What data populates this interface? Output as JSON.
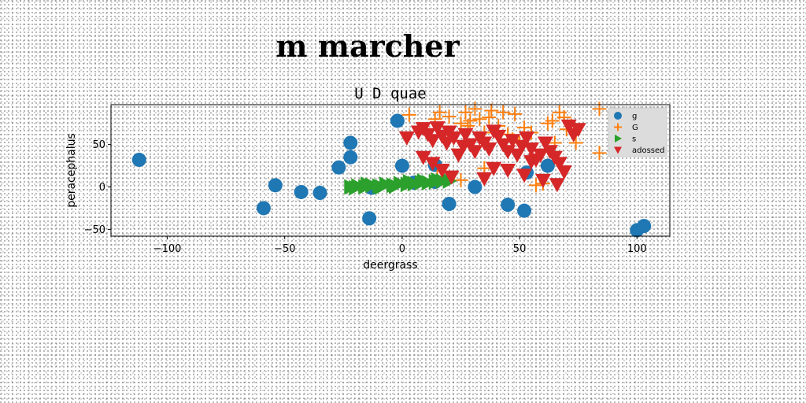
{
  "suptitle": "m marcher",
  "chart_data": {
    "type": "scatter",
    "title": "U D quae",
    "xlabel": "deergrass",
    "ylabel": "peracephalus",
    "xlim": [
      -124,
      114
    ],
    "ylim": [
      -58,
      97
    ],
    "xticks": [
      -100,
      -50,
      0,
      50,
      100
    ],
    "yticks": [
      -50,
      0,
      50
    ],
    "grid": false,
    "legend": "top-right",
    "series": [
      {
        "name": "g",
        "marker": "circle",
        "color": "#1f77b4",
        "points": [
          [
            -112,
            32
          ],
          [
            -59,
            -25
          ],
          [
            -54,
            2
          ],
          [
            -43,
            -6
          ],
          [
            -35,
            -7
          ],
          [
            -27,
            23
          ],
          [
            -22,
            52
          ],
          [
            -22,
            35
          ],
          [
            -14,
            -37
          ],
          [
            -13,
            -1
          ],
          [
            -2,
            78
          ],
          [
            0,
            25
          ],
          [
            5,
            5
          ],
          [
            14,
            26
          ],
          [
            14,
            6
          ],
          [
            20,
            -20
          ],
          [
            31,
            0
          ],
          [
            45,
            -21
          ],
          [
            52,
            -28
          ],
          [
            53,
            17
          ],
          [
            62,
            25
          ],
          [
            100,
            -51
          ],
          [
            103,
            -46
          ]
        ]
      },
      {
        "name": "G",
        "marker": "plus",
        "color": "#ff7f0e",
        "points": [
          [
            3,
            85
          ],
          [
            14,
            80
          ],
          [
            16,
            88
          ],
          [
            20,
            83
          ],
          [
            25,
            75
          ],
          [
            27,
            88
          ],
          [
            28,
            72
          ],
          [
            29,
            78
          ],
          [
            31,
            92
          ],
          [
            33,
            80
          ],
          [
            35,
            64
          ],
          [
            37,
            82
          ],
          [
            38,
            90
          ],
          [
            41,
            72
          ],
          [
            43,
            88
          ],
          [
            45,
            62
          ],
          [
            47,
            56
          ],
          [
            48,
            86
          ],
          [
            50,
            52
          ],
          [
            52,
            70
          ],
          [
            55,
            64
          ],
          [
            57,
            2
          ],
          [
            60,
            4
          ],
          [
            62,
            75
          ],
          [
            64,
            78
          ],
          [
            65,
            52
          ],
          [
            67,
            88
          ],
          [
            69,
            82
          ],
          [
            70,
            68
          ],
          [
            72,
            72
          ],
          [
            74,
            52
          ],
          [
            84,
            92
          ],
          [
            84,
            40
          ],
          [
            25,
            8
          ],
          [
            15,
            12
          ],
          [
            35,
            22
          ]
        ]
      },
      {
        "name": "s",
        "marker": "triangle-right",
        "color": "#2ca02c",
        "points": [
          [
            -22,
            0
          ],
          [
            -19,
            1
          ],
          [
            -16,
            0
          ],
          [
            -13,
            2
          ],
          [
            -10,
            1
          ],
          [
            -7,
            3
          ],
          [
            -4,
            2
          ],
          [
            -1,
            4
          ],
          [
            2,
            3
          ],
          [
            5,
            4
          ],
          [
            8,
            5
          ],
          [
            11,
            5
          ],
          [
            14,
            6
          ],
          [
            17,
            7
          ],
          [
            20,
            7
          ],
          [
            -20,
            -1
          ],
          [
            -15,
            3
          ],
          [
            -9,
            0
          ],
          [
            -3,
            1
          ],
          [
            3,
            6
          ],
          [
            9,
            7
          ],
          [
            15,
            8
          ]
        ]
      },
      {
        "name": "adossed",
        "marker": "triangle-down",
        "color": "#d62728",
        "points": [
          [
            2,
            58
          ],
          [
            7,
            65
          ],
          [
            9,
            69
          ],
          [
            11,
            62
          ],
          [
            13,
            55
          ],
          [
            15,
            70
          ],
          [
            17,
            60
          ],
          [
            19,
            52
          ],
          [
            20,
            65
          ],
          [
            22,
            58
          ],
          [
            24,
            38
          ],
          [
            26,
            48
          ],
          [
            27,
            62
          ],
          [
            29,
            50
          ],
          [
            31,
            42
          ],
          [
            33,
            58
          ],
          [
            35,
            52
          ],
          [
            37,
            45
          ],
          [
            39,
            66
          ],
          [
            41,
            60
          ],
          [
            43,
            50
          ],
          [
            45,
            42
          ],
          [
            47,
            55
          ],
          [
            49,
            38
          ],
          [
            51,
            48
          ],
          [
            53,
            58
          ],
          [
            55,
            45
          ],
          [
            57,
            32
          ],
          [
            59,
            38
          ],
          [
            61,
            52
          ],
          [
            63,
            42
          ],
          [
            65,
            35
          ],
          [
            67,
            28
          ],
          [
            69,
            18
          ],
          [
            71,
            72
          ],
          [
            73,
            62
          ],
          [
            75,
            68
          ],
          [
            9,
            35
          ],
          [
            13,
            28
          ],
          [
            17,
            20
          ],
          [
            21,
            12
          ],
          [
            35,
            10
          ],
          [
            45,
            20
          ],
          [
            52,
            14
          ],
          [
            60,
            8
          ],
          [
            66,
            3
          ],
          [
            39,
            22
          ],
          [
            55,
            30
          ]
        ]
      }
    ]
  }
}
